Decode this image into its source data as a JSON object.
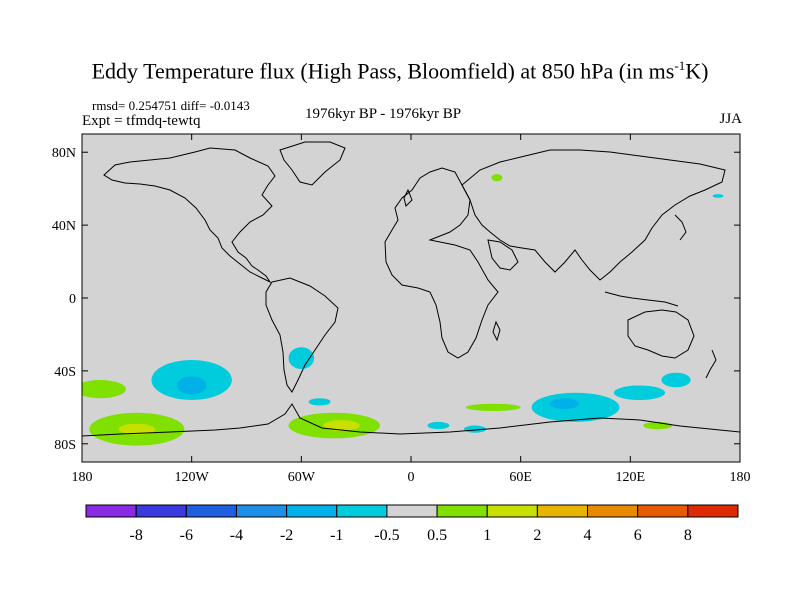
{
  "header": {
    "title_main": "Eddy Temperature flux (High Pass, Bloomfield) at 850 hPa (in ms",
    "title_sup": "-1",
    "title_end": "K)",
    "stats": "rmsd= 0.254751 diff= -0.0143",
    "expt": "Expt = tfmdq-tewtq",
    "period": "1976kyr BP - 1976kyr BP",
    "season": "JJA"
  },
  "map": {
    "projection": "cylindrical-equidistant",
    "lon_range": [
      -180,
      180
    ],
    "lat_range": [
      -90,
      90
    ],
    "background_color": "#d3d3d3",
    "x_ticks": [
      {
        "value": -180,
        "label": "180"
      },
      {
        "value": -120,
        "label": "120W"
      },
      {
        "value": -60,
        "label": "60W"
      },
      {
        "value": 0,
        "label": "0"
      },
      {
        "value": 60,
        "label": "60E"
      },
      {
        "value": 120,
        "label": "120E"
      },
      {
        "value": 180,
        "label": "180"
      }
    ],
    "y_ticks": [
      {
        "value": 80,
        "label": "80N"
      },
      {
        "value": 40,
        "label": "40N"
      },
      {
        "value": 0,
        "label": "0"
      },
      {
        "value": -40,
        "label": "40S"
      },
      {
        "value": -80,
        "label": "80S"
      }
    ],
    "regions": [
      {
        "lon": -170,
        "lat": -50,
        "rx": 14,
        "ry": 5,
        "color": "#80e000"
      },
      {
        "lon": -150,
        "lat": -72,
        "rx": 26,
        "ry": 9,
        "color": "#80e000"
      },
      {
        "lon": -150,
        "lat": -72,
        "rx": 10,
        "ry": 3,
        "color": "#c8e000"
      },
      {
        "lon": -120,
        "lat": -45,
        "rx": 22,
        "ry": 11,
        "color": "#00ccdd"
      },
      {
        "lon": -120,
        "lat": -48,
        "rx": 8,
        "ry": 5,
        "color": "#00b0e8"
      },
      {
        "lon": -60,
        "lat": -33,
        "rx": 7,
        "ry": 6,
        "color": "#00ccdd"
      },
      {
        "lon": -50,
        "lat": -57,
        "rx": 6,
        "ry": 2,
        "color": "#00ccdd"
      },
      {
        "lon": -42,
        "lat": -70,
        "rx": 25,
        "ry": 7,
        "color": "#80e000"
      },
      {
        "lon": -38,
        "lat": -70,
        "rx": 10,
        "ry": 3,
        "color": "#c8e000"
      },
      {
        "lon": 15,
        "lat": -70,
        "rx": 6,
        "ry": 2,
        "color": "#00ccdd"
      },
      {
        "lon": 45,
        "lat": -60,
        "rx": 15,
        "ry": 2,
        "color": "#80e000"
      },
      {
        "lon": 35,
        "lat": -72,
        "rx": 6,
        "ry": 2,
        "color": "#00ccdd"
      },
      {
        "lon": 90,
        "lat": -60,
        "rx": 24,
        "ry": 8,
        "color": "#00ccdd"
      },
      {
        "lon": 84,
        "lat": -58,
        "rx": 8,
        "ry": 3,
        "color": "#00b0e8"
      },
      {
        "lon": 125,
        "lat": -52,
        "rx": 14,
        "ry": 4,
        "color": "#00ccdd"
      },
      {
        "lon": 135,
        "lat": -70,
        "rx": 8,
        "ry": 2,
        "color": "#80e000"
      },
      {
        "lon": 145,
        "lat": -45,
        "rx": 8,
        "ry": 4,
        "color": "#00ccdd"
      },
      {
        "lon": 47,
        "lat": 66,
        "rx": 3,
        "ry": 2,
        "color": "#80e000"
      },
      {
        "lon": 168,
        "lat": 56,
        "rx": 3,
        "ry": 1,
        "color": "#00ccdd"
      }
    ]
  },
  "colorbar": {
    "colors": [
      "#8a2be2",
      "#3a3adf",
      "#1f5fdf",
      "#1e8fe6",
      "#00b0e8",
      "#00ccdd",
      "#d3d3d3",
      "#80e000",
      "#c8e000",
      "#e8b400",
      "#e88a00",
      "#e85a00",
      "#dd2a00"
    ],
    "labels": [
      "-8",
      "-6",
      "-4",
      "-2",
      "-1",
      "-0.5",
      "0.5",
      "1",
      "2",
      "4",
      "6",
      "8"
    ]
  }
}
